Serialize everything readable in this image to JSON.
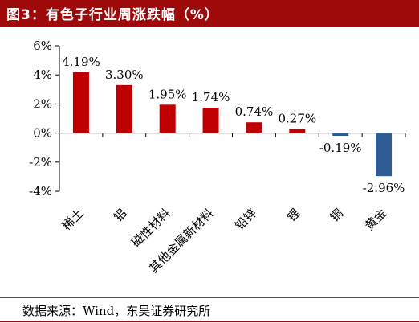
{
  "title": "图3：有色子行业周涨跌幅（%）",
  "source": "数据来源：Wind，东吴证券研究所",
  "colors": {
    "positive": "#c00000",
    "negative": "#2e5d95",
    "title_bg": "#9e0a0a",
    "axis": "#000000"
  },
  "chart_data": {
    "type": "bar",
    "categories": [
      "稀土",
      "铝",
      "磁性材料",
      "其他金属新材料",
      "铅锌",
      "锂",
      "铜",
      "黄金"
    ],
    "values": [
      4.19,
      3.3,
      1.95,
      1.74,
      0.74,
      0.27,
      -0.19,
      -2.96
    ],
    "data_labels": [
      "4.19%",
      "3.30%",
      "1.95%",
      "1.74%",
      "0.74%",
      "0.27%",
      "-0.19%",
      "-2.96%"
    ],
    "yticks": [
      6,
      4,
      2,
      0,
      -2,
      -4
    ],
    "ytick_labels": [
      "6%",
      "4%",
      "2%",
      "0%",
      "-2%",
      "-4%"
    ],
    "ylim": [
      -4,
      6
    ],
    "xlabel": "",
    "ylabel": "",
    "grid": false,
    "legend": "none"
  }
}
